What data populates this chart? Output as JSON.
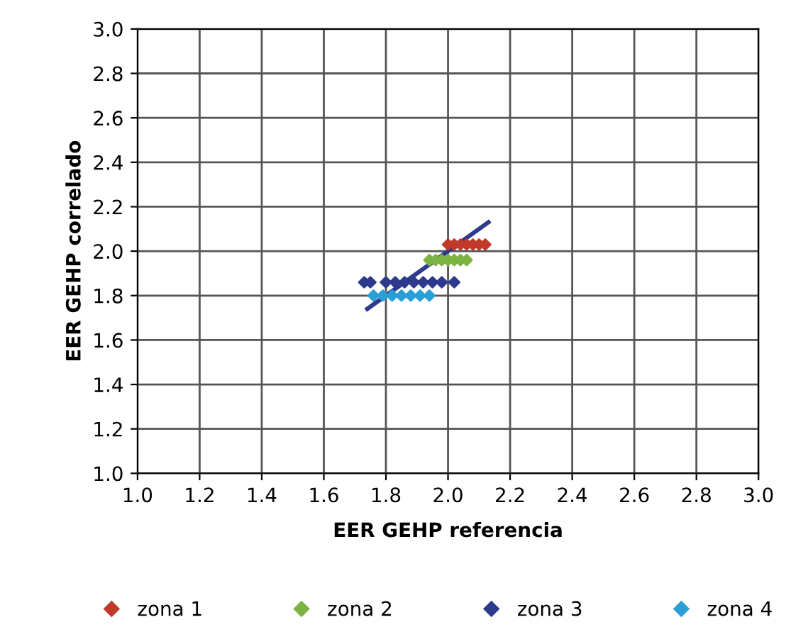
{
  "chart_data": {
    "type": "scatter",
    "xlabel": "EER GEHP referencia",
    "ylabel": "EER GEHP correlado",
    "xlim": [
      1.0,
      3.0
    ],
    "ylim": [
      1.0,
      3.0
    ],
    "xticks": [
      {
        "value": 1.0,
        "label": "1.0"
      },
      {
        "value": 1.2,
        "label": "1.2"
      },
      {
        "value": 1.4,
        "label": "1.4"
      },
      {
        "value": 1.6,
        "label": "1.6"
      },
      {
        "value": 1.8,
        "label": "1.8"
      },
      {
        "value": 2.0,
        "label": "2.0"
      },
      {
        "value": 2.2,
        "label": "2.2"
      },
      {
        "value": 2.4,
        "label": "2.4"
      },
      {
        "value": 2.6,
        "label": "2.6"
      },
      {
        "value": 2.8,
        "label": "2.8"
      },
      {
        "value": 3.0,
        "label": "3.0"
      }
    ],
    "yticks": [
      {
        "value": 1.0,
        "label": "1.0"
      },
      {
        "value": 1.2,
        "label": "1.2"
      },
      {
        "value": 1.4,
        "label": "1.4"
      },
      {
        "value": 1.6,
        "label": "1.6"
      },
      {
        "value": 1.8,
        "label": "1.8"
      },
      {
        "value": 2.0,
        "label": "2.0"
      },
      {
        "value": 2.2,
        "label": "2.2"
      },
      {
        "value": 2.4,
        "label": "2.4"
      },
      {
        "value": 2.6,
        "label": "2.6"
      },
      {
        "value": 2.8,
        "label": "2.8"
      },
      {
        "value": 3.0,
        "label": "3.0"
      }
    ],
    "grid": true,
    "legend": "bottom",
    "marker": "diamond",
    "series": [
      {
        "name": "zona 1",
        "color": "#c0392b",
        "x": [
          2.0,
          2.02,
          2.04,
          2.06,
          2.08,
          2.1,
          2.12
        ],
        "values": [
          2.03,
          2.03,
          2.03,
          2.03,
          2.03,
          2.03,
          2.03
        ]
      },
      {
        "name": "zona 2",
        "color": "#7cb342",
        "x": [
          1.94,
          1.96,
          1.98,
          2.0,
          2.02,
          2.04,
          2.06
        ],
        "values": [
          1.96,
          1.96,
          1.96,
          1.96,
          1.96,
          1.96,
          1.96
        ]
      },
      {
        "name": "zona 3",
        "color": "#2e3a8c",
        "x": [
          1.73,
          1.75,
          1.8,
          1.83,
          1.86,
          1.89,
          1.92,
          1.95,
          1.98,
          2.02
        ],
        "values": [
          1.86,
          1.86,
          1.86,
          1.86,
          1.86,
          1.86,
          1.86,
          1.86,
          1.86,
          1.86
        ]
      },
      {
        "name": "zona 4",
        "color": "#2a9fd6",
        "x": [
          1.76,
          1.79,
          1.82,
          1.85,
          1.88,
          1.91,
          1.94
        ],
        "values": [
          1.8,
          1.8,
          1.8,
          1.8,
          1.8,
          1.8,
          1.8
        ]
      },
      {
        "type": "line",
        "color": "#2e3a8c",
        "marker": "none",
        "x": [
          1.74,
          2.13
        ],
        "values": [
          1.74,
          2.13
        ]
      }
    ]
  }
}
